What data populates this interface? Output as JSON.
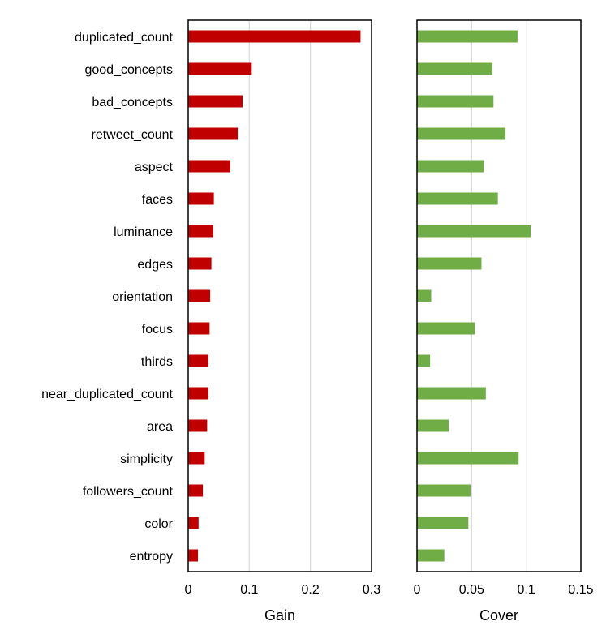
{
  "chart_data": [
    {
      "type": "bar",
      "orientation": "horizontal",
      "xlabel": "Gain",
      "xlim": [
        0,
        0.3
      ],
      "xticks": [
        "0",
        "0.1",
        "0.2",
        "0.3"
      ],
      "xtick_values": [
        0,
        0.1,
        0.2,
        0.3
      ],
      "grid": true,
      "color": "#c00000",
      "categories": [
        "duplicated_count",
        "good_concepts",
        "bad_concepts",
        "retweet_count",
        "aspect",
        "faces",
        "luminance",
        "edges",
        "orientation",
        "focus",
        "thirds",
        "near_duplicated_count",
        "area",
        "simplicity",
        "followers_count",
        "color",
        "entropy"
      ],
      "values": [
        0.282,
        0.104,
        0.089,
        0.081,
        0.069,
        0.042,
        0.041,
        0.038,
        0.036,
        0.035,
        0.033,
        0.033,
        0.031,
        0.027,
        0.024,
        0.017,
        0.016
      ]
    },
    {
      "type": "bar",
      "orientation": "horizontal",
      "xlabel": "Cover",
      "xlim": [
        0,
        0.15
      ],
      "xticks": [
        "0",
        "0.05",
        "0.1",
        "0.15"
      ],
      "xtick_values": [
        0,
        0.05,
        0.1,
        0.15
      ],
      "grid": true,
      "color": "#70ad47",
      "categories": [
        "duplicated_count",
        "good_concepts",
        "bad_concepts",
        "retweet_count",
        "aspect",
        "faces",
        "luminance",
        "edges",
        "orientation",
        "focus",
        "thirds",
        "near_duplicated_count",
        "area",
        "simplicity",
        "followers_count",
        "color",
        "entropy"
      ],
      "values": [
        0.092,
        0.069,
        0.07,
        0.081,
        0.061,
        0.074,
        0.104,
        0.059,
        0.013,
        0.053,
        0.012,
        0.063,
        0.029,
        0.093,
        0.049,
        0.047,
        0.025
      ]
    }
  ]
}
